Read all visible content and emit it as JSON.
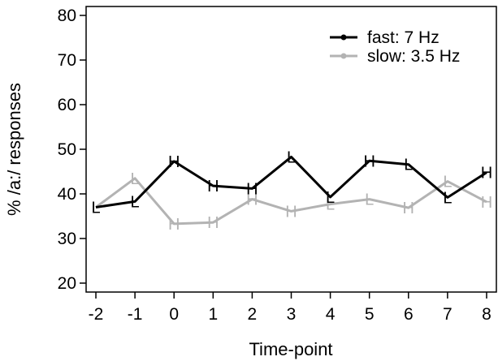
{
  "chart_data": {
    "type": "line",
    "xlabel": "Time-point",
    "ylabel": "% /a:/ responses",
    "x": [
      -2,
      -1,
      0,
      1,
      2,
      3,
      4,
      5,
      6,
      7,
      8
    ],
    "x_tick_labels": [
      "-2",
      "-1",
      "0",
      "1",
      "2",
      "3",
      "4",
      "5",
      "6",
      "7",
      "8"
    ],
    "xlim": [
      -2.25,
      8.25
    ],
    "ylim": [
      18,
      82
    ],
    "y_ticks": [
      20,
      30,
      40,
      50,
      60,
      70,
      80
    ],
    "y_tick_labels": [
      "20",
      "30",
      "40",
      "50",
      "60",
      "70",
      "80"
    ],
    "grid": false,
    "legend_position": "top-right",
    "series": [
      {
        "name": "fast: 7 Hz",
        "color": "#000000",
        "values": [
          37,
          38.3,
          47.3,
          41.8,
          41.2,
          48.3,
          39.3,
          47.4,
          46.6,
          39.2,
          44.8
        ],
        "point_labels": [
          "L",
          "L",
          "H",
          "H",
          "H",
          "L",
          "L",
          "H",
          "L",
          "L",
          "H"
        ]
      },
      {
        "name": "slow: 3.5 Hz",
        "color": "#b3b3b3",
        "values": [
          37,
          43.5,
          33.3,
          33.6,
          38.8,
          36.1,
          37.7,
          38.8,
          36.9,
          42.8,
          38.2
        ],
        "point_labels": [
          "L",
          "L",
          "H",
          "H",
          "H",
          "H",
          "L",
          "L",
          "H",
          "L",
          "H"
        ]
      }
    ]
  }
}
